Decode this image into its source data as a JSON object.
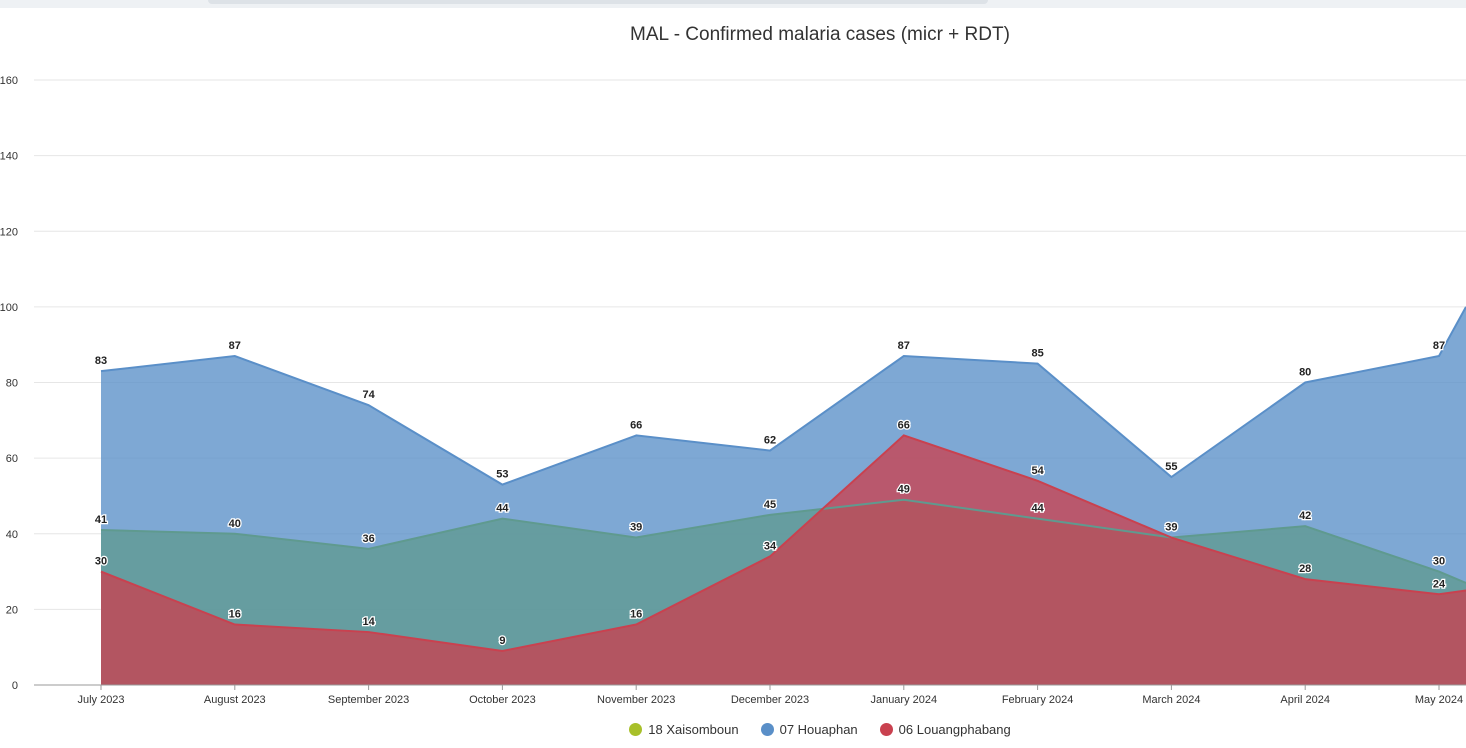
{
  "chart_data": {
    "type": "area",
    "title": "MAL - Confirmed malaria cases (micr + RDT)",
    "categories": [
      "July 2023",
      "August 2023",
      "September 2023",
      "October 2023",
      "November 2023",
      "December 2023",
      "January 2024",
      "February 2024",
      "March 2024",
      "April 2024",
      "May 2024"
    ],
    "y_ticks": [
      "0",
      "20",
      "40",
      "60",
      "80",
      "100",
      "120",
      "140",
      "160"
    ],
    "ylim": [
      0,
      160
    ],
    "grid": true,
    "legend_position": "bottom",
    "series": [
      {
        "name": "18 Xaisomboun",
        "color": "#a8c02a",
        "values": [
          41,
          40,
          36,
          44,
          39,
          45,
          49,
          44,
          39,
          42,
          30
        ],
        "trailing_value": 27
      },
      {
        "name": "07 Houaphan",
        "color": "#5a8fc8",
        "values": [
          83,
          87,
          74,
          53,
          66,
          62,
          87,
          85,
          55,
          80,
          87
        ],
        "trailing_value": 100
      },
      {
        "name": "06 Louangphabang",
        "color": "#c9414f",
        "values": [
          30,
          16,
          14,
          9,
          16,
          34,
          66,
          54,
          39,
          28,
          24
        ],
        "trailing_value": 25
      }
    ]
  }
}
